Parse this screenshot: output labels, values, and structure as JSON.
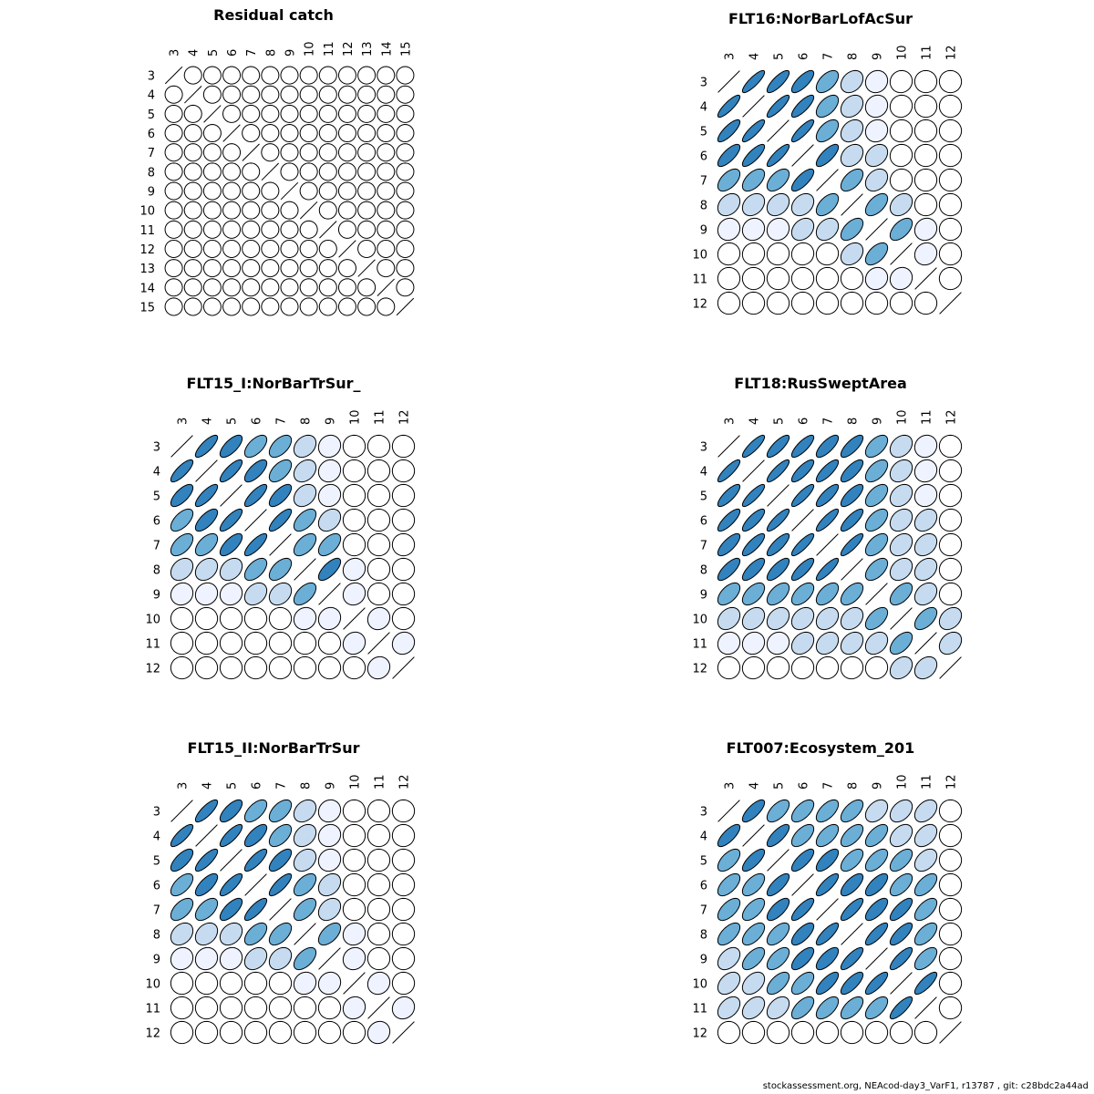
{
  "footer": "stockassessment.org, NEAcod-day3_VarF1, r13787 , git: c28bdc2a44ad",
  "colors": {
    "positive_scale": [
      "#ffffff",
      "#eff3ff",
      "#c6dbef",
      "#6baed6",
      "#3182bd",
      "#08519c"
    ],
    "outline": "#000000"
  },
  "chart_data": [
    {
      "type": "heatmap",
      "subtype": "correlation-ellipse",
      "title": "Residual catch",
      "labels": [
        "3",
        "4",
        "5",
        "6",
        "7",
        "8",
        "9",
        "10",
        "11",
        "12",
        "13",
        "14",
        "15"
      ],
      "correlation_matrix": [
        [
          1,
          0,
          0,
          0,
          0,
          0,
          0,
          0,
          0,
          0,
          0,
          0,
          0
        ],
        [
          0,
          1,
          0,
          0,
          0,
          0,
          0,
          0,
          0,
          0,
          0,
          0,
          0
        ],
        [
          0,
          0,
          1,
          0,
          0,
          0,
          0,
          0,
          0,
          0,
          0,
          0,
          0
        ],
        [
          0,
          0,
          0,
          1,
          0,
          0,
          0,
          0,
          0,
          0,
          0,
          0,
          0
        ],
        [
          0,
          0,
          0,
          0,
          1,
          0,
          0,
          0,
          0,
          0,
          0,
          0,
          0
        ],
        [
          0,
          0,
          0,
          0,
          0,
          1,
          0,
          0,
          0,
          0,
          0,
          0,
          0
        ],
        [
          0,
          0,
          0,
          0,
          0,
          0,
          1,
          0,
          0,
          0,
          0,
          0,
          0
        ],
        [
          0,
          0,
          0,
          0,
          0,
          0,
          0,
          1,
          0,
          0,
          0,
          0,
          0
        ],
        [
          0,
          0,
          0,
          0,
          0,
          0,
          0,
          0,
          1,
          0,
          0,
          0,
          0
        ],
        [
          0,
          0,
          0,
          0,
          0,
          0,
          0,
          0,
          0,
          1,
          0,
          0,
          0
        ],
        [
          0,
          0,
          0,
          0,
          0,
          0,
          0,
          0,
          0,
          0,
          1,
          0,
          0
        ],
        [
          0,
          0,
          0,
          0,
          0,
          0,
          0,
          0,
          0,
          0,
          0,
          1,
          0
        ],
        [
          0,
          0,
          0,
          0,
          0,
          0,
          0,
          0,
          0,
          0,
          0,
          0,
          1
        ]
      ]
    },
    {
      "type": "heatmap",
      "subtype": "correlation-ellipse",
      "title": "FLT16:NorBarLofAcSur",
      "labels": [
        "3",
        "4",
        "5",
        "6",
        "7",
        "8",
        "9",
        "10",
        "11",
        "12"
      ],
      "correlation_matrix": [
        [
          1,
          0.85,
          0.8,
          0.75,
          0.55,
          0.3,
          0.1,
          0.05,
          0,
          0
        ],
        [
          0.85,
          1,
          0.85,
          0.8,
          0.55,
          0.3,
          0.1,
          0.05,
          0,
          0
        ],
        [
          0.8,
          0.85,
          1,
          0.85,
          0.55,
          0.3,
          0.1,
          0.05,
          0,
          0
        ],
        [
          0.75,
          0.8,
          0.85,
          1,
          0.75,
          0.3,
          0.3,
          0.05,
          0,
          0
        ],
        [
          0.55,
          0.55,
          0.55,
          0.75,
          1,
          0.55,
          0.3,
          0.05,
          0,
          0
        ],
        [
          0.3,
          0.3,
          0.3,
          0.3,
          0.55,
          1,
          0.55,
          0.3,
          0,
          0
        ],
        [
          0.1,
          0.1,
          0.1,
          0.3,
          0.3,
          0.55,
          1,
          0.55,
          0.1,
          0
        ],
        [
          0.05,
          0.05,
          0.05,
          0.05,
          0.05,
          0.3,
          0.55,
          1,
          0.1,
          0
        ],
        [
          0,
          0,
          0,
          0,
          0,
          0,
          0.1,
          0.1,
          1,
          0
        ],
        [
          0,
          0,
          0,
          0,
          0,
          0,
          0,
          0,
          0,
          1
        ]
      ]
    },
    {
      "type": "heatmap",
      "subtype": "correlation-ellipse",
      "title": "FLT15_I:NorBarTrSur_",
      "labels": [
        "3",
        "4",
        "5",
        "6",
        "7",
        "8",
        "9",
        "10",
        "11",
        "12"
      ],
      "correlation_matrix": [
        [
          1,
          0.8,
          0.7,
          0.6,
          0.55,
          0.3,
          0.1,
          0,
          0,
          0
        ],
        [
          0.8,
          1,
          0.8,
          0.7,
          0.55,
          0.3,
          0.1,
          0,
          0,
          0
        ],
        [
          0.7,
          0.8,
          1,
          0.8,
          0.7,
          0.3,
          0.1,
          0,
          0,
          0
        ],
        [
          0.6,
          0.7,
          0.8,
          1,
          0.8,
          0.55,
          0.3,
          0,
          0,
          0
        ],
        [
          0.55,
          0.55,
          0.7,
          0.8,
          1,
          0.55,
          0.55,
          0,
          0,
          0
        ],
        [
          0.3,
          0.3,
          0.3,
          0.55,
          0.55,
          1,
          0.7,
          0.1,
          0,
          0
        ],
        [
          0.1,
          0.1,
          0.1,
          0.3,
          0.3,
          0.55,
          1,
          0.1,
          0,
          0
        ],
        [
          0,
          0,
          0,
          0,
          0,
          0.1,
          0.1,
          1,
          0.1,
          0
        ],
        [
          0,
          0,
          0,
          0,
          0,
          0,
          0,
          0.1,
          1,
          0.1
        ],
        [
          0,
          0,
          0,
          0,
          0,
          0,
          0,
          0,
          0.1,
          1
        ]
      ]
    },
    {
      "type": "heatmap",
      "subtype": "correlation-ellipse",
      "title": "FLT18:RusSweptArea",
      "labels": [
        "3",
        "4",
        "5",
        "6",
        "7",
        "8",
        "9",
        "10",
        "11",
        "12"
      ],
      "correlation_matrix": [
        [
          1,
          0.85,
          0.8,
          0.8,
          0.75,
          0.75,
          0.55,
          0.3,
          0.1,
          0
        ],
        [
          0.85,
          1,
          0.85,
          0.8,
          0.8,
          0.75,
          0.55,
          0.3,
          0.1,
          0.05
        ],
        [
          0.8,
          0.85,
          1,
          0.85,
          0.8,
          0.75,
          0.55,
          0.3,
          0.1,
          0.05
        ],
        [
          0.8,
          0.8,
          0.85,
          1,
          0.85,
          0.8,
          0.55,
          0.3,
          0.3,
          0.05
        ],
        [
          0.75,
          0.8,
          0.8,
          0.85,
          1,
          0.85,
          0.55,
          0.3,
          0.3,
          0.05
        ],
        [
          0.75,
          0.75,
          0.75,
          0.8,
          0.85,
          1,
          0.55,
          0.3,
          0.3,
          0.05
        ],
        [
          0.55,
          0.55,
          0.55,
          0.55,
          0.55,
          0.55,
          1,
          0.55,
          0.3,
          0.05
        ],
        [
          0.3,
          0.3,
          0.3,
          0.3,
          0.3,
          0.3,
          0.55,
          1,
          0.55,
          0.3
        ],
        [
          0.1,
          0.1,
          0.1,
          0.3,
          0.3,
          0.3,
          0.3,
          0.55,
          1,
          0.3
        ],
        [
          0,
          0.05,
          0.05,
          0.05,
          0.05,
          0.05,
          0.05,
          0.3,
          0.3,
          1
        ]
      ]
    },
    {
      "type": "heatmap",
      "subtype": "correlation-ellipse",
      "title": "FLT15_II:NorBarTrSur",
      "labels": [
        "3",
        "4",
        "5",
        "6",
        "7",
        "8",
        "9",
        "10",
        "11",
        "12"
      ],
      "correlation_matrix": [
        [
          1,
          0.8,
          0.7,
          0.6,
          0.55,
          0.3,
          0.1,
          0,
          0,
          0
        ],
        [
          0.8,
          1,
          0.8,
          0.7,
          0.55,
          0.3,
          0.1,
          0,
          0,
          0
        ],
        [
          0.7,
          0.8,
          1,
          0.8,
          0.7,
          0.3,
          0.1,
          0,
          0,
          0
        ],
        [
          0.6,
          0.7,
          0.8,
          1,
          0.8,
          0.55,
          0.3,
          0,
          0,
          0
        ],
        [
          0.55,
          0.55,
          0.7,
          0.8,
          1,
          0.55,
          0.3,
          0,
          0,
          0
        ],
        [
          0.3,
          0.3,
          0.3,
          0.55,
          0.55,
          1,
          0.55,
          0.1,
          0,
          0
        ],
        [
          0.1,
          0.1,
          0.1,
          0.3,
          0.3,
          0.55,
          1,
          0.1,
          0,
          0
        ],
        [
          0,
          0,
          0,
          0,
          0,
          0.1,
          0.1,
          1,
          0.1,
          0
        ],
        [
          0,
          0,
          0,
          0,
          0,
          0,
          0,
          0.1,
          1,
          0.1
        ],
        [
          0,
          0,
          0,
          0,
          0,
          0,
          0,
          0,
          0.1,
          1
        ]
      ]
    },
    {
      "type": "heatmap",
      "subtype": "correlation-ellipse",
      "title": "FLT007:Ecosystem_201",
      "labels": [
        "3",
        "4",
        "5",
        "6",
        "7",
        "8",
        "9",
        "10",
        "11",
        "12"
      ],
      "correlation_matrix": [
        [
          1,
          0.75,
          0.6,
          0.6,
          0.6,
          0.6,
          0.4,
          0.4,
          0.4,
          0
        ],
        [
          0.75,
          1,
          0.75,
          0.6,
          0.6,
          0.6,
          0.6,
          0.4,
          0.4,
          0
        ],
        [
          0.6,
          0.75,
          1,
          0.75,
          0.7,
          0.6,
          0.6,
          0.6,
          0.4,
          0
        ],
        [
          0.6,
          0.6,
          0.75,
          1,
          0.8,
          0.7,
          0.7,
          0.6,
          0.6,
          0
        ],
        [
          0.6,
          0.6,
          0.7,
          0.8,
          1,
          0.8,
          0.7,
          0.75,
          0.6,
          0
        ],
        [
          0.6,
          0.6,
          0.6,
          0.7,
          0.8,
          1,
          0.8,
          0.75,
          0.6,
          0
        ],
        [
          0.4,
          0.6,
          0.6,
          0.7,
          0.7,
          0.8,
          1,
          0.8,
          0.6,
          0
        ],
        [
          0.4,
          0.4,
          0.6,
          0.6,
          0.75,
          0.75,
          0.8,
          1,
          0.8,
          0
        ],
        [
          0.4,
          0.4,
          0.4,
          0.6,
          0.6,
          0.6,
          0.6,
          0.8,
          1,
          0
        ],
        [
          0,
          0,
          0,
          0,
          0,
          0,
          0,
          0,
          0,
          1
        ]
      ]
    }
  ]
}
